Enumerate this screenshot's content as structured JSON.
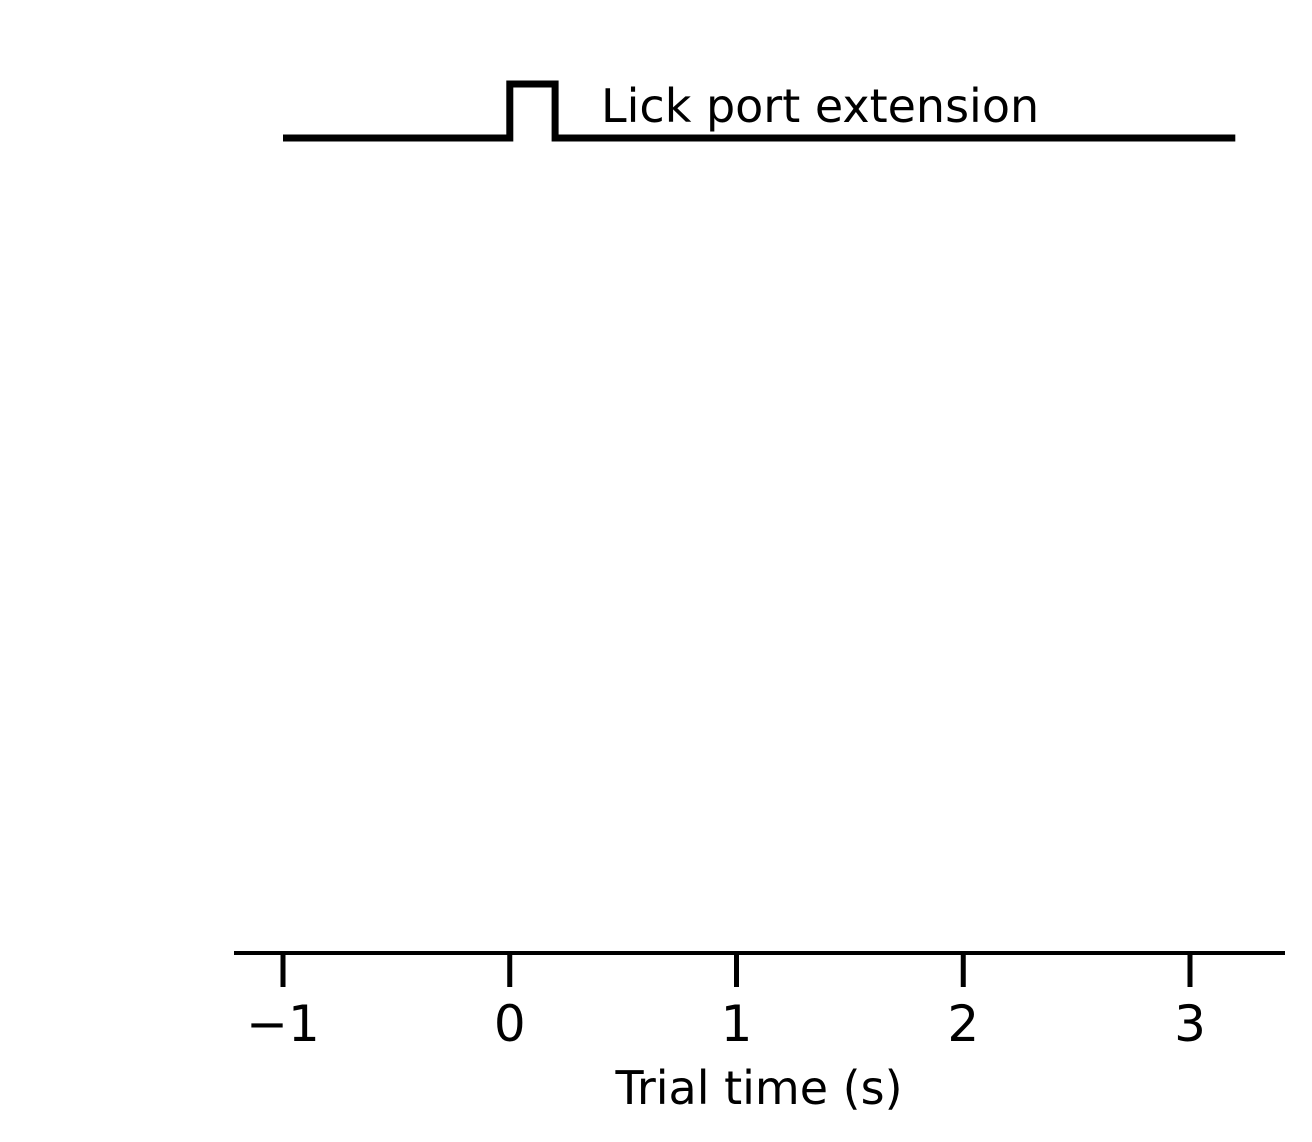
{
  "chart_data": {
    "type": "line",
    "title": "",
    "xlabel": "Trial time (s)",
    "ylabel": "",
    "xlim": [
      -1.22,
      3.42
    ],
    "x_ticks": [
      -1,
      0,
      1,
      2,
      3
    ],
    "x_tick_labels": [
      "−1",
      "0",
      "1",
      "2",
      "3"
    ],
    "grid": false,
    "series": [
      {
        "name": "Lick port extension",
        "x": [
          -1,
          0,
          0,
          0.2,
          0.2,
          3.2
        ],
        "y": [
          0,
          0,
          1,
          1,
          0,
          0
        ]
      }
    ],
    "annotations": [
      {
        "text": "Lick port extension",
        "x": 0.4
      }
    ],
    "colors": {
      "line": "#000000",
      "axis": "#000000",
      "background": "#ffffff"
    }
  }
}
